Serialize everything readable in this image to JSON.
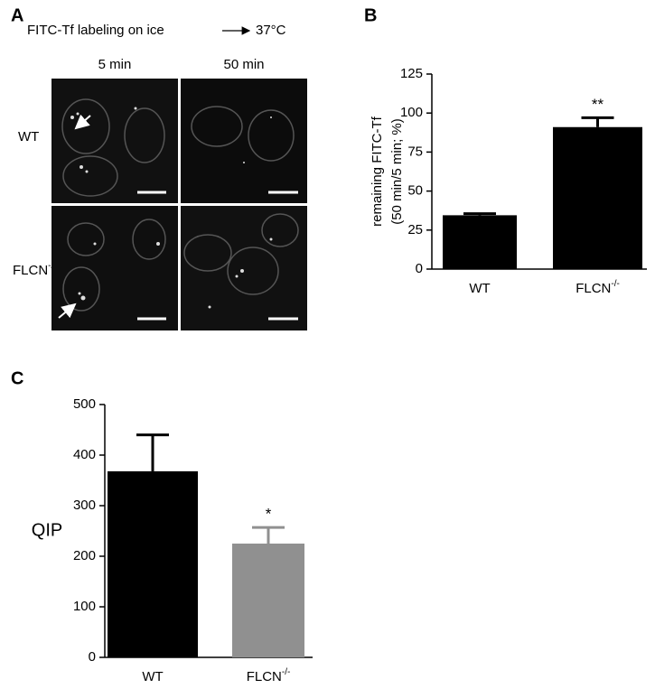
{
  "panel_a": {
    "panel": "A",
    "title": "FITC-Tf labeling on ice",
    "temperature": "37°C",
    "columns": [
      "5 min",
      "50 min"
    ],
    "rows": [
      "WT",
      "FLCN-/-"
    ]
  },
  "chart_data": [
    {
      "type": "bar",
      "panel": "B",
      "ylabel": [
        "remaining FITC-Tf",
        "(50 min/5 min; %)"
      ],
      "categories": [
        "WT",
        "FLCN-/-"
      ],
      "values": [
        34.5,
        91
      ],
      "errors": [
        1,
        6
      ],
      "colors": [
        "#000000",
        "#000000"
      ],
      "ylim": [
        0,
        125
      ],
      "yticks": [
        0,
        25,
        50,
        75,
        100,
        125
      ],
      "annotation": {
        "text": "**",
        "category": "FLCN-/-"
      }
    },
    {
      "type": "bar",
      "panel": "C",
      "ylabel": [
        "QIP"
      ],
      "categories": [
        "WT",
        "FLCN-/-"
      ],
      "values": [
        368,
        225
      ],
      "errors": [
        72,
        32
      ],
      "colors": [
        "#000000",
        "#909090"
      ],
      "ylim": [
        0,
        500
      ],
      "yticks": [
        0,
        100,
        200,
        300,
        400,
        500
      ],
      "annotation": {
        "text": "*",
        "category": "FLCN-/-"
      }
    }
  ]
}
